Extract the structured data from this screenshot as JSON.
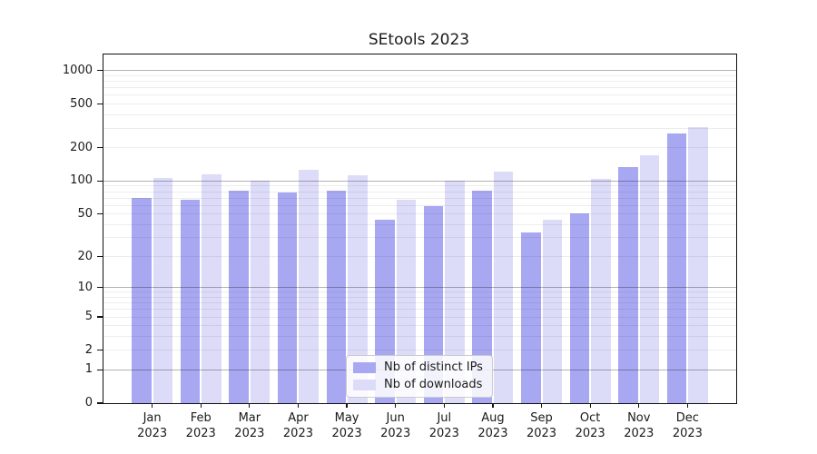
{
  "title": "SEtools 2023",
  "chart_data": {
    "type": "bar",
    "title": "SEtools 2023",
    "categories": [
      "Jan",
      "Feb",
      "Mar",
      "Apr",
      "May",
      "Jun",
      "Jul",
      "Aug",
      "Sep",
      "Oct",
      "Nov",
      "Dec"
    ],
    "category_year": "2023",
    "series": [
      {
        "name": "Nb of distinct IPs",
        "color": "#a8a8f2",
        "values": [
          70,
          68,
          81,
          79,
          82,
          44,
          59,
          82,
          34,
          51,
          133,
          268
        ]
      },
      {
        "name": "Nb of downloads",
        "color": "#dcdcf9",
        "values": [
          106,
          116,
          100,
          126,
          113,
          68,
          100,
          121,
          44,
          105,
          173,
          310
        ]
      }
    ],
    "yscale": "log1p",
    "ylim": [
      0,
      1400
    ],
    "yticks": [
      1000,
      500,
      200,
      100,
      50,
      20,
      10,
      5,
      2,
      1,
      0
    ],
    "grid_major": [
      1,
      10,
      100,
      1000
    ],
    "grid_minor": [
      2,
      3,
      4,
      5,
      6,
      7,
      8,
      9,
      20,
      30,
      40,
      50,
      60,
      70,
      80,
      90,
      200,
      300,
      400,
      500,
      600,
      700,
      800,
      900
    ],
    "legend": {
      "position": "lower center"
    },
    "background": "#ffffff",
    "grid_on": true
  }
}
